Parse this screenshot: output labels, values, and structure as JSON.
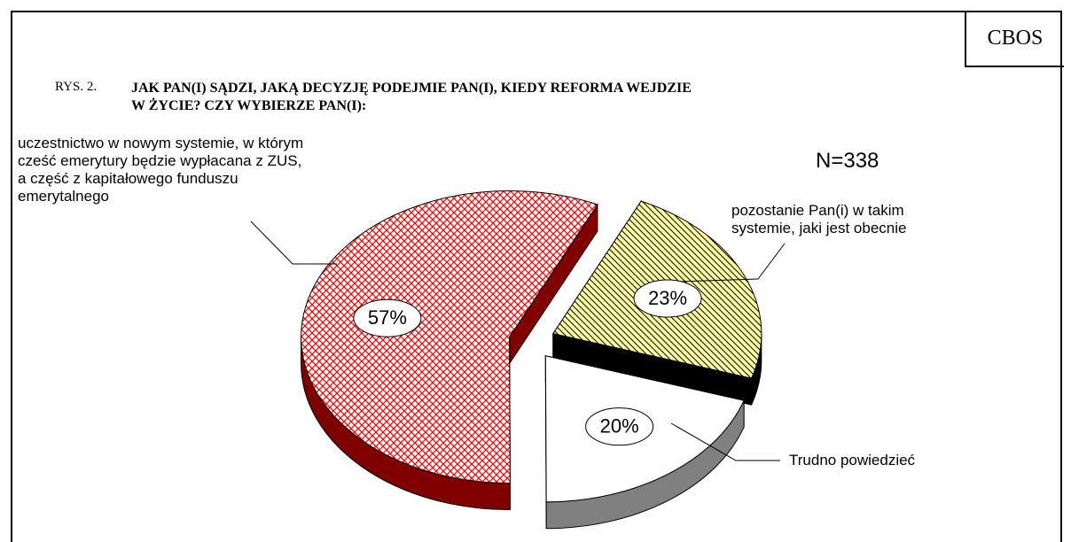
{
  "source": "CBOS",
  "figure_label": "RYS. 2.",
  "title": "JAK PAN(I) SĄDZI, JAKĄ DECYZJĘ PODEJMIE PAN(I), KIEDY REFORMA WEJDZIE\nW ŻYCIE? CZY WYBIERZE PAN(I):",
  "chart_data": {
    "type": "pie",
    "annotation": "N=338",
    "categories": [
      "uczestnictwo w nowym systemie, w którym\ncześć emerytury będzie wypłacana z ZUS,\na część z kapitałowego funduszu\nemerytalnego",
      "pozostanie Pan(i) w takim\nsystemie, jaki jest obecnie",
      "Trudno powiedzieć"
    ],
    "values": [
      57,
      23,
      20
    ],
    "value_labels": [
      "57%",
      "23%",
      "20%"
    ],
    "colors": [
      "#ff0000",
      "#ffff99",
      "#ffffff"
    ]
  }
}
